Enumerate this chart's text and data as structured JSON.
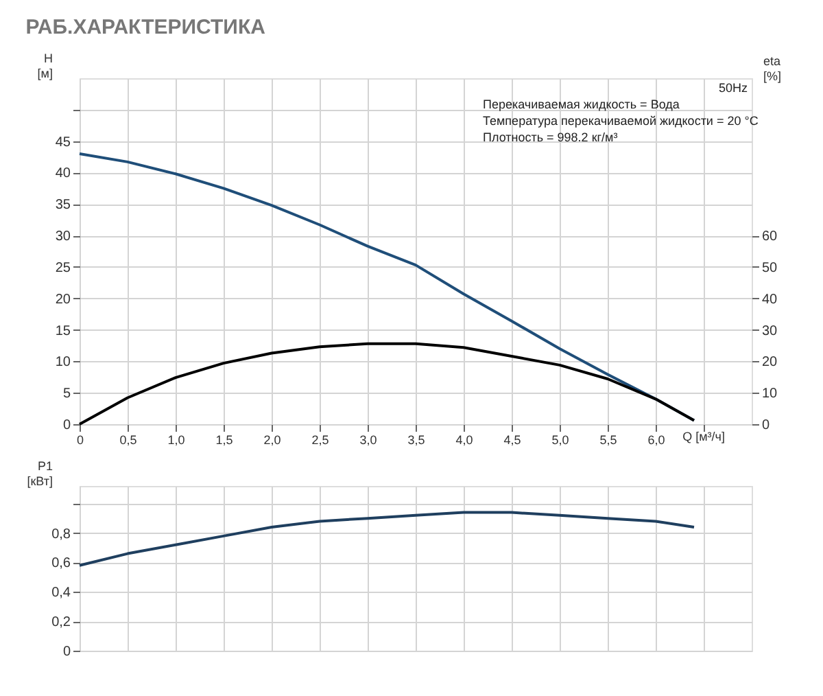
{
  "chart_data": [
    {
      "type": "line",
      "title": "РАБ.ХАРАКТЕРИСТИКА",
      "xlabel": "Q [м³/ч]",
      "ylabel": "H [м]",
      "y2label": "eta [%]",
      "annotations": [
        "50Hz",
        "Перекачиваемая жидкость = Вода",
        "Температура перекачиваемой жидкости = 20 °C",
        "Плотность = 998.2 кг/м³"
      ],
      "x": [
        0,
        0.5,
        1.0,
        1.5,
        2.0,
        2.5,
        3.0,
        3.5,
        4.0,
        4.5,
        5.0,
        5.5,
        6.0,
        6.4
      ],
      "series": [
        {
          "color": "#1f4e79",
          "values": [
            43,
            41.7,
            39.8,
            37.5,
            34.8,
            31.7,
            28.3,
            25.3,
            20.7,
            16.4,
            12.0,
            7.9,
            4.0,
            0.6
          ]
        },
        {
          "color": "#000000",
          "axis": "y2",
          "values": [
            0,
            8.4,
            14.8,
            19.4,
            22.6,
            24.6,
            25.6,
            25.6,
            24.4,
            21.6,
            18.8,
            14.4,
            8.0,
            1.2
          ]
        }
      ],
      "xlim": [
        0,
        7
      ],
      "xticks": [
        0,
        {
          "value": 0.5,
          "label": "0,5"
        },
        {
          "value": 1.0,
          "label": "1,0"
        },
        {
          "value": 1.5,
          "label": "1,5"
        },
        {
          "value": 2.0,
          "label": "2,0"
        },
        {
          "value": 2.5,
          "label": "2,5"
        },
        {
          "value": 3.0,
          "label": "3,0"
        },
        {
          "value": 3.5,
          "label": "3,5"
        },
        {
          "value": 4.0,
          "label": "4,0"
        },
        {
          "value": 4.5,
          "label": "4,5"
        },
        {
          "value": 5.0,
          "label": "5,0"
        },
        {
          "value": 5.5,
          "label": "5,5"
        },
        {
          "value": 6.0,
          "label": "6,0"
        },
        {
          "value": 6.5,
          "label": null
        }
      ],
      "ylim": [
        0,
        55
      ],
      "yticks": [
        0,
        5,
        10,
        15,
        20,
        25,
        30,
        35,
        40,
        45,
        {
          "value": 50,
          "label": null
        }
      ],
      "y2lim": [
        0,
        110
      ],
      "y2ticks": [
        0,
        10,
        20,
        30,
        40,
        50,
        60
      ],
      "grid": true
    },
    {
      "type": "line",
      "ylabel": "P1 [кВт]",
      "x": [
        0,
        0.5,
        1.0,
        1.5,
        2.0,
        2.5,
        3.0,
        3.5,
        4.0,
        4.5,
        5.0,
        5.5,
        6.0,
        6.4
      ],
      "series": [
        {
          "color": "#1f3f5f",
          "values": [
            0.58,
            0.66,
            0.72,
            0.78,
            0.84,
            0.88,
            0.9,
            0.92,
            0.94,
            0.94,
            0.92,
            0.9,
            0.88,
            0.84
          ]
        }
      ],
      "xlim": [
        0,
        7
      ],
      "xticks": [
        0,
        0.5,
        1.0,
        1.5,
        2.0,
        2.5,
        3.0,
        3.5,
        4.0,
        4.5,
        5.0,
        5.5,
        6.0,
        6.5
      ],
      "ylim": [
        0,
        1.12
      ],
      "yticks": [
        0,
        {
          "value": 0.2,
          "label": "0,2"
        },
        {
          "value": 0.4,
          "label": "0,4"
        },
        {
          "value": 0.6,
          "label": "0,6"
        },
        {
          "value": 0.8,
          "label": "0,8"
        },
        {
          "value": 1.0,
          "label": null
        }
      ],
      "tick_labels": "y",
      "grid": true
    }
  ]
}
